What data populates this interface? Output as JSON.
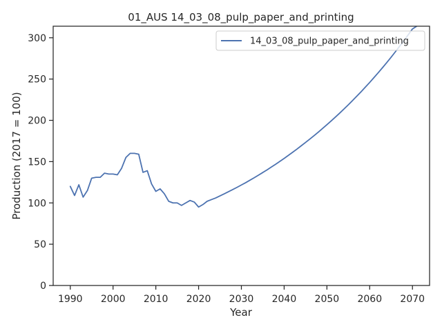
{
  "chart_data": {
    "type": "line",
    "title": "01_AUS 14_03_08_pulp_paper_and_printing",
    "xlabel": "Year",
    "ylabel": "Production (2017 = 100)",
    "xlim": [
      1986.0,
      2074.0
    ],
    "ylim": [
      0,
      314
    ],
    "xticks": [
      1990,
      2000,
      2010,
      2020,
      2030,
      2040,
      2050,
      2060,
      2070
    ],
    "yticks": [
      0,
      50,
      100,
      150,
      200,
      250,
      300
    ],
    "grid": false,
    "legend_position": "top-right",
    "series": [
      {
        "name": "14_03_08_pulp_paper_and_printing",
        "color": "#4c72b0",
        "x": [
          1990,
          1991,
          1992,
          1993,
          1994,
          1995,
          1996,
          1997,
          1998,
          1999,
          2000,
          2001,
          2002,
          2003,
          2004,
          2005,
          2006,
          2007,
          2008,
          2009,
          2010,
          2011,
          2012,
          2013,
          2014,
          2015,
          2016,
          2017,
          2018,
          2019,
          2020,
          2021,
          2022,
          2023,
          2024,
          2025,
          2026,
          2027,
          2028,
          2029,
          2030,
          2031,
          2032,
          2033,
          2034,
          2035,
          2036,
          2037,
          2038,
          2039,
          2040,
          2041,
          2042,
          2043,
          2044,
          2045,
          2046,
          2047,
          2048,
          2049,
          2050,
          2051,
          2052,
          2053,
          2054,
          2055,
          2056,
          2057,
          2058,
          2059,
          2060,
          2061,
          2062,
          2063,
          2064,
          2065,
          2066,
          2067,
          2068,
          2069,
          2070,
          2071
        ],
        "values": [
          120,
          109,
          122,
          107,
          115,
          130,
          131,
          131,
          136,
          135,
          135,
          134,
          142,
          155,
          160,
          160,
          159,
          137,
          139,
          123,
          114,
          117,
          111,
          102,
          100,
          100,
          97,
          100,
          103,
          101,
          95,
          98,
          102,
          104,
          106,
          108.5,
          111,
          113.6,
          116.2,
          118.9,
          121.7,
          124.5,
          127.5,
          130.5,
          133.6,
          136.8,
          140,
          143.4,
          146.8,
          150.3,
          153.9,
          157.6,
          161.4,
          165.2,
          169.2,
          173.2,
          177.3,
          181.5,
          185.8,
          190.2,
          194.7,
          199.3,
          204,
          208.8,
          213.8,
          218.8,
          224,
          229.3,
          234.7,
          240.3,
          245.9,
          251.8,
          257.7,
          263.8,
          270,
          276.4,
          283,
          289.7,
          296.5,
          303.5,
          310.7,
          314
        ]
      }
    ]
  }
}
